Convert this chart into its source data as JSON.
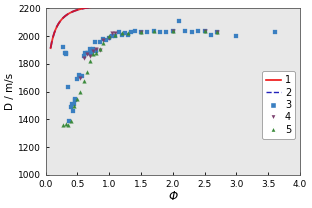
{
  "title": "",
  "xlabel": "Φ",
  "ylabel": "D / m/s",
  "xlim": [
    0.0,
    4.0
  ],
  "ylim": [
    1000,
    2200
  ],
  "xticks": [
    0.0,
    0.5,
    1.0,
    1.5,
    2.0,
    2.5,
    3.0,
    3.5,
    4.0
  ],
  "yticks": [
    1000,
    1200,
    1400,
    1600,
    1800,
    2000,
    2200
  ],
  "curve_color_1": "#ee1111",
  "curve_color_2": "#2222bb",
  "scatter3_color": "#3a7fc1",
  "scatter4_color": "#7b3f6e",
  "scatter5_color": "#3a8a3a",
  "scatter3": [
    [
      0.28,
      1920
    ],
    [
      0.3,
      1880
    ],
    [
      0.32,
      1870
    ],
    [
      0.33,
      1880
    ],
    [
      0.35,
      1630
    ],
    [
      0.37,
      1390
    ],
    [
      0.4,
      1490
    ],
    [
      0.42,
      1510
    ],
    [
      0.44,
      1460
    ],
    [
      0.45,
      1510
    ],
    [
      0.46,
      1540
    ],
    [
      0.47,
      1550
    ],
    [
      0.5,
      1690
    ],
    [
      0.52,
      1720
    ],
    [
      0.55,
      1710
    ],
    [
      0.58,
      1710
    ],
    [
      0.6,
      1860
    ],
    [
      0.62,
      1880
    ],
    [
      0.65,
      1880
    ],
    [
      0.67,
      1880
    ],
    [
      0.7,
      1910
    ],
    [
      0.72,
      1880
    ],
    [
      0.75,
      1910
    ],
    [
      0.78,
      1960
    ],
    [
      0.8,
      1890
    ],
    [
      0.85,
      1960
    ],
    [
      0.9,
      1980
    ],
    [
      0.95,
      1970
    ],
    [
      1.0,
      1990
    ],
    [
      1.05,
      2000
    ],
    [
      1.1,
      2000
    ],
    [
      1.15,
      2030
    ],
    [
      1.2,
      2010
    ],
    [
      1.25,
      2020
    ],
    [
      1.3,
      2010
    ],
    [
      1.35,
      2030
    ],
    [
      1.4,
      2040
    ],
    [
      1.5,
      2030
    ],
    [
      1.6,
      2030
    ],
    [
      1.7,
      2040
    ],
    [
      1.8,
      2030
    ],
    [
      1.9,
      2030
    ],
    [
      2.0,
      2040
    ],
    [
      2.1,
      2110
    ],
    [
      2.2,
      2040
    ],
    [
      2.3,
      2030
    ],
    [
      2.4,
      2040
    ],
    [
      2.5,
      2040
    ],
    [
      2.6,
      2010
    ],
    [
      2.7,
      2030
    ],
    [
      3.0,
      2000
    ],
    [
      3.6,
      2030
    ]
  ],
  "scatter4": [
    [
      0.55,
      1700
    ],
    [
      0.6,
      1840
    ],
    [
      0.65,
      1870
    ],
    [
      0.7,
      1860
    ],
    [
      0.75,
      1890
    ],
    [
      0.8,
      1910
    ],
    [
      0.85,
      1900
    ],
    [
      0.9,
      1970
    ],
    [
      1.0,
      1990
    ],
    [
      1.05,
      2020
    ],
    [
      1.1,
      2020
    ],
    [
      1.5,
      2030
    ],
    [
      2.0,
      2040
    ],
    [
      2.5,
      2040
    ],
    [
      2.7,
      2030
    ]
  ],
  "scatter5": [
    [
      0.28,
      1360
    ],
    [
      0.32,
      1370
    ],
    [
      0.35,
      1360
    ],
    [
      0.4,
      1390
    ],
    [
      0.45,
      1500
    ],
    [
      0.5,
      1550
    ],
    [
      0.55,
      1600
    ],
    [
      0.6,
      1680
    ],
    [
      0.65,
      1740
    ],
    [
      0.7,
      1820
    ],
    [
      0.75,
      1870
    ],
    [
      0.8,
      1880
    ],
    [
      0.85,
      1910
    ],
    [
      0.9,
      1950
    ],
    [
      1.0,
      2000
    ],
    [
      1.1,
      2010
    ],
    [
      1.2,
      2020
    ],
    [
      1.3,
      2020
    ],
    [
      1.5,
      2030
    ],
    [
      1.7,
      2040
    ],
    [
      2.0,
      2040
    ],
    [
      2.5,
      2040
    ],
    [
      2.7,
      2030
    ]
  ],
  "legend": [
    "1",
    "2",
    "3",
    "4",
    "5"
  ],
  "bg_color": "#e8e8e8",
  "curve_start": 0.08,
  "curve_end": 4.02,
  "curve_A": 1320,
  "curve_B": 880,
  "curve_k": 4.5
}
